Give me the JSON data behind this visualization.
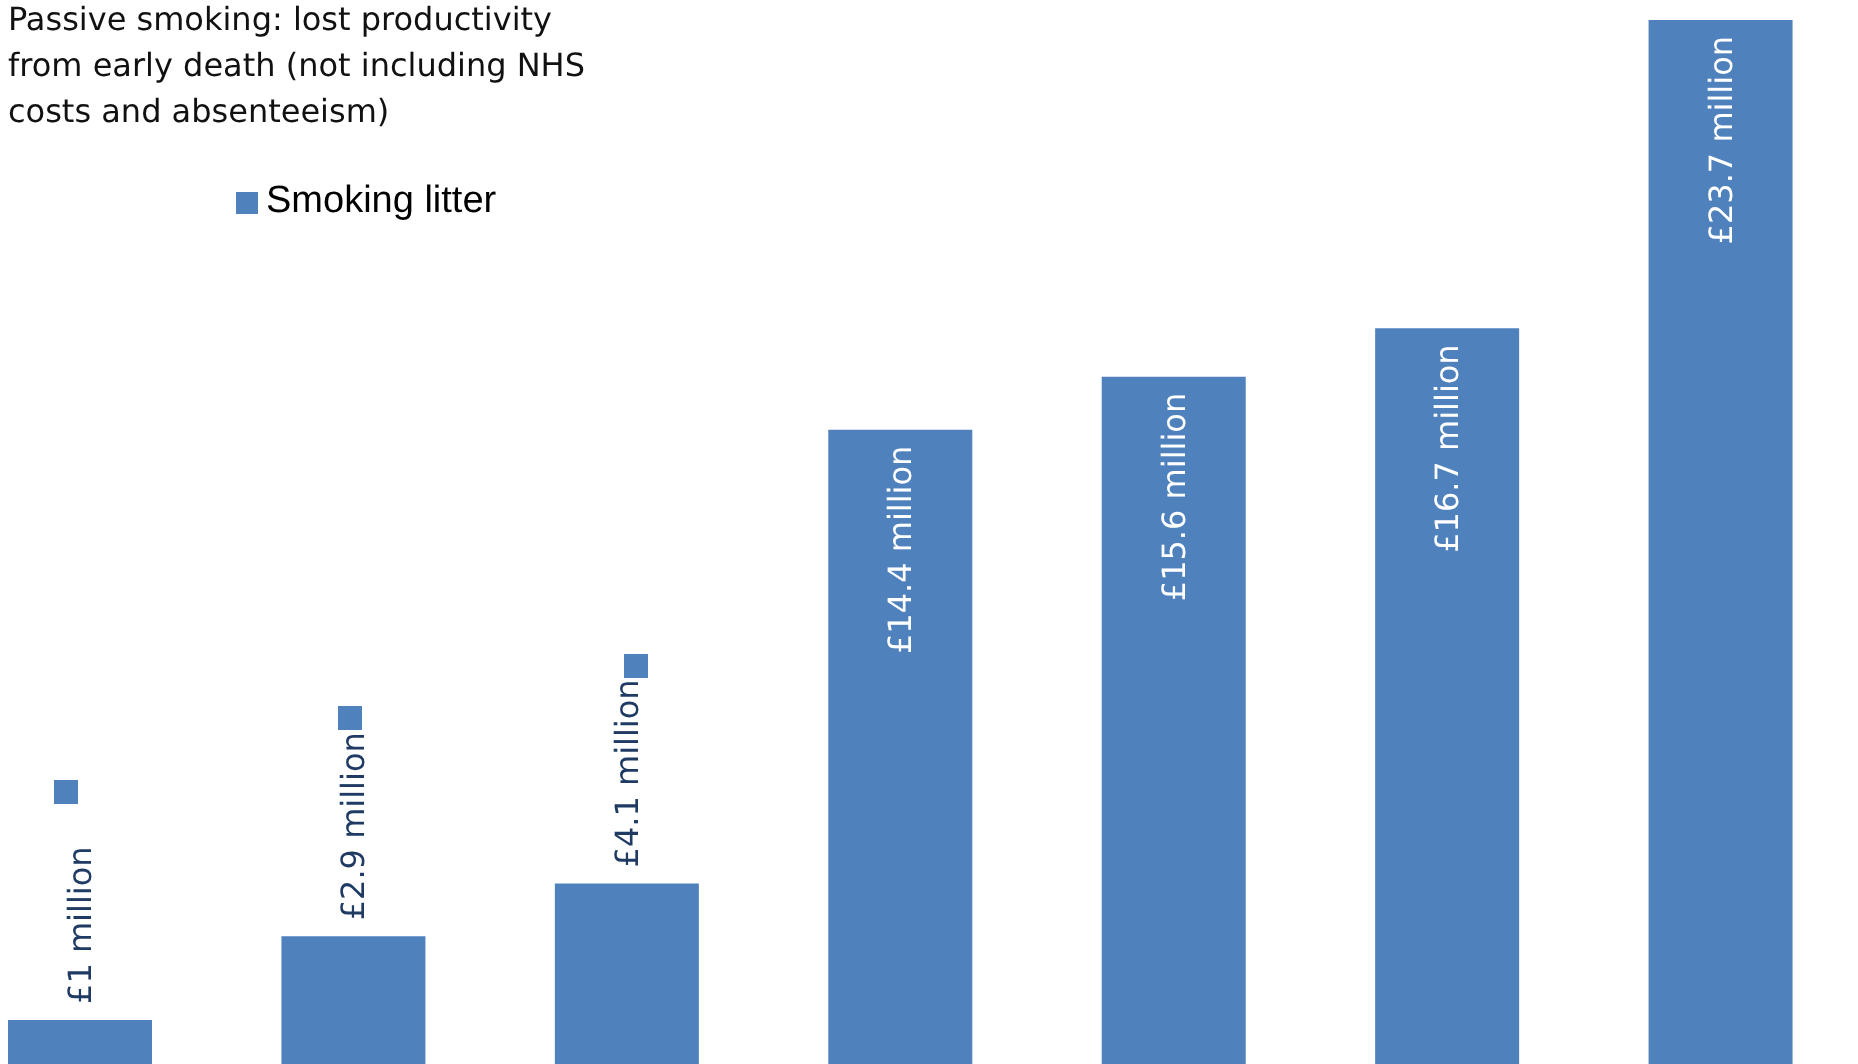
{
  "chart_data": {
    "type": "bar",
    "categories": [
      null,
      null,
      null,
      null,
      null,
      null,
      null
    ],
    "values": [
      1,
      2.9,
      4.1,
      14.4,
      15.6,
      16.7,
      23.7
    ],
    "color": "#4f81bd",
    "value_labels": [
      "£1 million",
      "£2.9 million",
      "£4.1 million",
      "£14.4 million",
      "£15.6 million",
      "£16.7 million",
      "£23.7 million"
    ],
    "annotations": [
      "Passive smoking: lost productivity from early death (not including NHS costs and absenteeism)",
      "Smoking litter"
    ]
  }
}
